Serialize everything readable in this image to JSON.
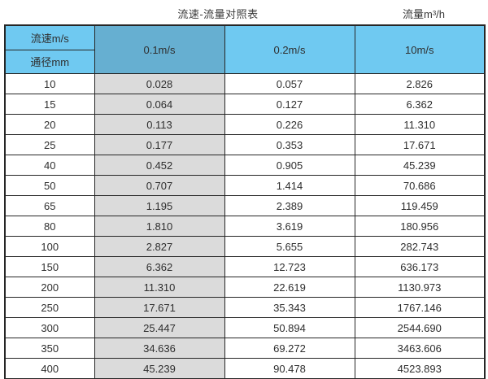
{
  "header": {
    "title": "流速-流量对照表",
    "unit_label": "流量m³/h"
  },
  "table": {
    "corner_top": "流速m/s",
    "corner_bottom": "通径mm",
    "velocity_columns": [
      "0.1m/s",
      "0.2m/s",
      "10m/s"
    ],
    "rows": [
      {
        "diameter": "10",
        "values": [
          "0.028",
          "0.057",
          "2.826"
        ]
      },
      {
        "diameter": "15",
        "values": [
          "0.064",
          "0.127",
          "6.362"
        ]
      },
      {
        "diameter": "20",
        "values": [
          "0.113",
          "0.226",
          "11.310"
        ]
      },
      {
        "diameter": "25",
        "values": [
          "0.177",
          "0.353",
          "17.671"
        ]
      },
      {
        "diameter": "40",
        "values": [
          "0.452",
          "0.905",
          "45.239"
        ]
      },
      {
        "diameter": "50",
        "values": [
          "0.707",
          "1.414",
          "70.686"
        ]
      },
      {
        "diameter": "65",
        "values": [
          "1.195",
          "2.389",
          "119.459"
        ]
      },
      {
        "diameter": "80",
        "values": [
          "1.810",
          "3.619",
          "180.956"
        ]
      },
      {
        "diameter": "100",
        "values": [
          "2.827",
          "5.655",
          "282.743"
        ]
      },
      {
        "diameter": "150",
        "values": [
          "6.362",
          "12.723",
          "636.173"
        ]
      },
      {
        "diameter": "200",
        "values": [
          "11.310",
          "22.619",
          "1130.973"
        ]
      },
      {
        "diameter": "250",
        "values": [
          "17.671",
          "35.343",
          "1767.146"
        ]
      },
      {
        "diameter": "300",
        "values": [
          "25.447",
          "50.894",
          "2544.690"
        ]
      },
      {
        "diameter": "350",
        "values": [
          "34.636",
          "69.272",
          "3463.606"
        ]
      },
      {
        "diameter": "400",
        "values": [
          "45.239",
          "90.478",
          "4523.893"
        ]
      }
    ]
  },
  "colors": {
    "header_blue": "#6FC9F1",
    "highlight_blue": "#66AFD1",
    "highlight_gray": "#DBDBDB",
    "border": "#262626"
  },
  "chart_data": {
    "type": "table",
    "title": "流速-流量对照表",
    "unit": "流量m³/h",
    "row_header": "通径mm",
    "column_header": "流速m/s",
    "columns": [
      "0.1m/s",
      "0.2m/s",
      "10m/s"
    ],
    "diameters_mm": [
      10,
      15,
      20,
      25,
      40,
      50,
      65,
      80,
      100,
      150,
      200,
      250,
      300,
      350,
      400
    ],
    "flow_m3_per_h": {
      "0.1m/s": [
        0.028,
        0.064,
        0.113,
        0.177,
        0.452,
        0.707,
        1.195,
        1.81,
        2.827,
        6.362,
        11.31,
        17.671,
        25.447,
        34.636,
        45.239
      ],
      "0.2m/s": [
        0.057,
        0.127,
        0.226,
        0.353,
        0.905,
        1.414,
        2.389,
        3.619,
        5.655,
        12.723,
        22.619,
        35.343,
        50.894,
        69.272,
        90.478
      ],
      "10m/s": [
        2.826,
        6.362,
        11.31,
        17.671,
        45.239,
        70.686,
        119.459,
        180.956,
        282.743,
        636.173,
        1130.973,
        1767.146,
        2544.69,
        3463.606,
        4523.893
      ]
    }
  }
}
